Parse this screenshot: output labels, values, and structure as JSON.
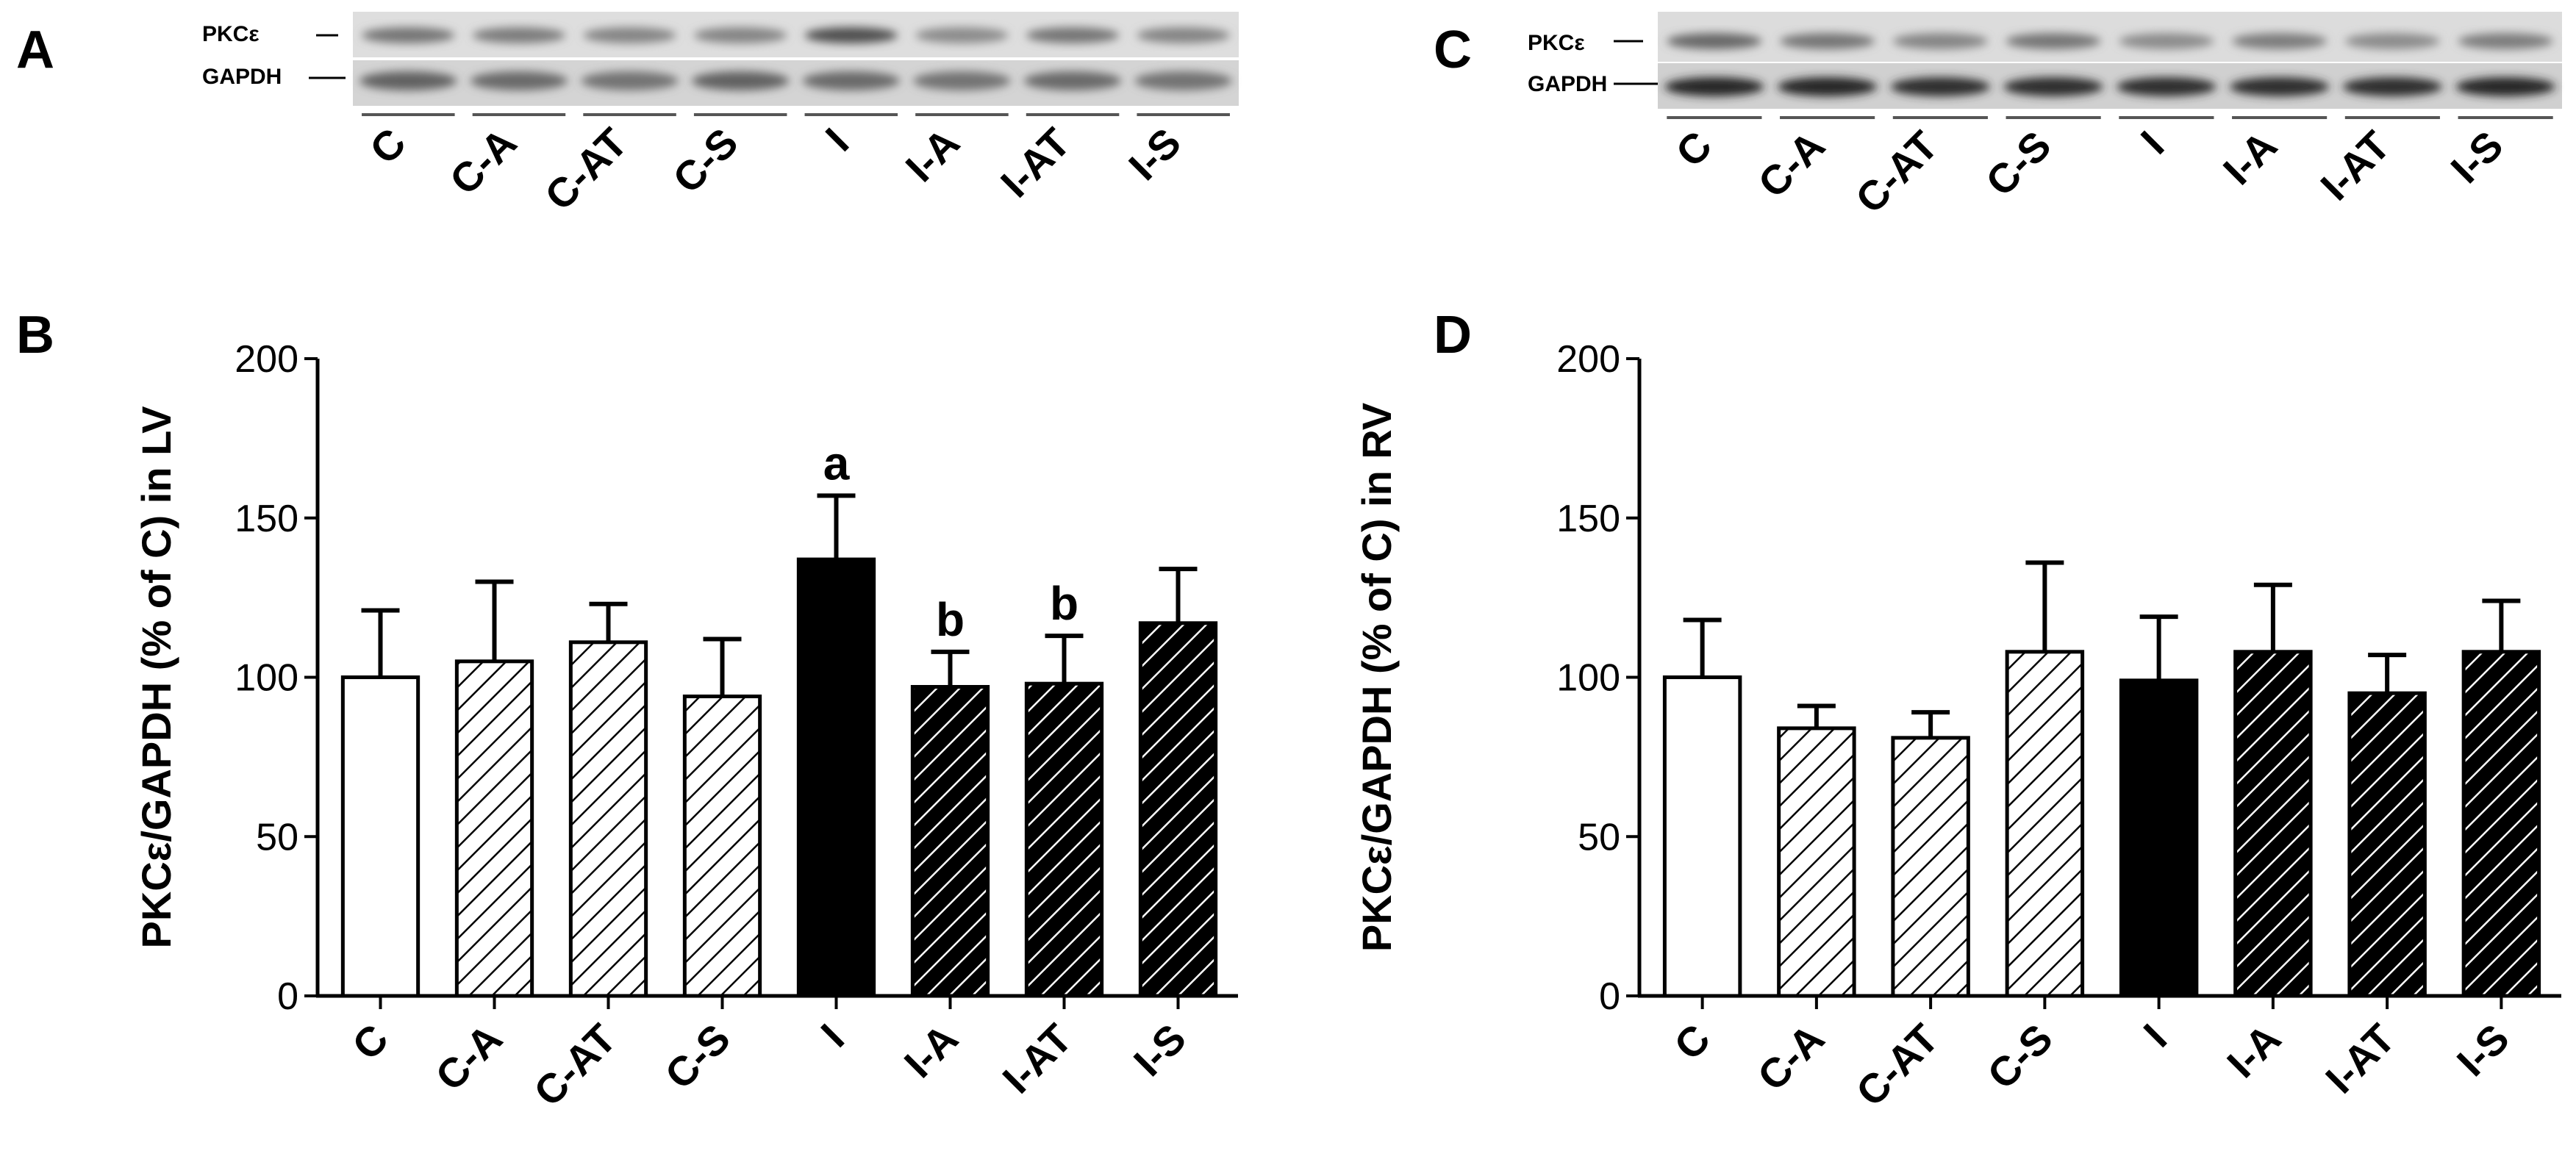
{
  "panels": {
    "A": "A",
    "B": "B",
    "C": "C",
    "D": "D"
  },
  "blots": [
    {
      "id": "A",
      "row_labels": [
        "PKCε",
        "GAPDH"
      ],
      "lanes": [
        "C",
        "C-A",
        "C-AT",
        "C-S",
        "I",
        "I-A",
        "I-AT",
        "I-S"
      ],
      "pkc_intensity": [
        0.55,
        0.5,
        0.45,
        0.45,
        0.8,
        0.4,
        0.55,
        0.45
      ],
      "gapdh_intensity": [
        0.6,
        0.55,
        0.5,
        0.6,
        0.55,
        0.5,
        0.55,
        0.5
      ]
    },
    {
      "id": "C",
      "row_labels": [
        "PKCε",
        "GAPDH"
      ],
      "lanes": [
        "C",
        "C-A",
        "C-AT",
        "C-S",
        "I",
        "I-A",
        "I-AT",
        "I-S"
      ],
      "pkc_intensity": [
        0.65,
        0.55,
        0.45,
        0.55,
        0.4,
        0.5,
        0.4,
        0.5
      ],
      "gapdh_intensity": [
        0.95,
        0.95,
        0.9,
        0.9,
        0.9,
        0.9,
        0.9,
        0.95
      ]
    }
  ],
  "chart_data": [
    {
      "id": "B",
      "type": "bar",
      "categories": [
        "C",
        "C-A",
        "C-AT",
        "C-S",
        "I",
        "I-A",
        "I-AT",
        "I-S"
      ],
      "values": [
        100,
        105,
        111,
        94,
        137,
        97,
        98,
        117
      ],
      "errors": [
        21,
        25,
        12,
        18,
        20,
        11,
        15,
        17
      ],
      "fills": [
        "white",
        "hatch-light",
        "hatch-light",
        "hatch-light",
        "black",
        "hatch-dark",
        "hatch-dark",
        "hatch-dark"
      ],
      "annotations": [
        "",
        "",
        "",
        "",
        "a",
        "b",
        "b",
        ""
      ],
      "ylabel": "PKCε/GAPDH (% of C) in LV",
      "ylim": [
        0,
        200
      ],
      "yticks": [
        "0",
        "50",
        "100",
        "150",
        "200"
      ]
    },
    {
      "id": "D",
      "type": "bar",
      "categories": [
        "C",
        "C-A",
        "C-AT",
        "C-S",
        "I",
        "I-A",
        "I-AT",
        "I-S"
      ],
      "values": [
        100,
        84,
        81,
        108,
        99,
        108,
        95,
        108
      ],
      "errors": [
        18,
        7,
        8,
        28,
        20,
        21,
        12,
        16
      ],
      "fills": [
        "white",
        "hatch-light",
        "hatch-light",
        "hatch-light",
        "black",
        "hatch-dark",
        "hatch-dark",
        "hatch-dark"
      ],
      "annotations": [
        "",
        "",
        "",
        "",
        "",
        "",
        "",
        ""
      ],
      "ylabel": "PKCε/GAPDH (% of C) in RV",
      "ylim": [
        0,
        200
      ],
      "yticks": [
        "0",
        "50",
        "100",
        "150",
        "200"
      ]
    }
  ]
}
